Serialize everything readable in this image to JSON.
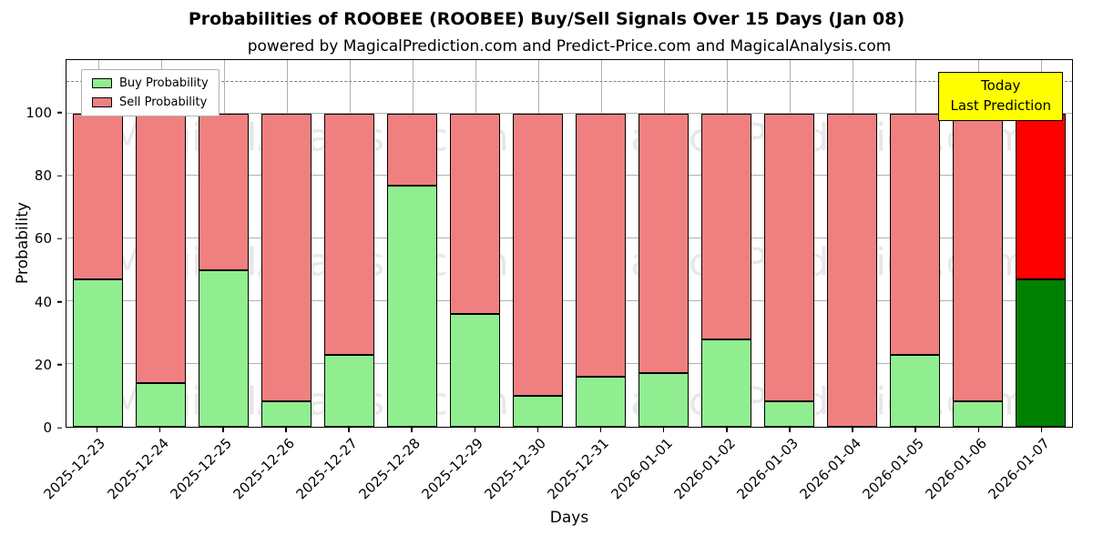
{
  "title": "Probabilities of ROOBEE (ROOBEE) Buy/Sell Signals Over 15 Days (Jan 08)",
  "subtitle": "powered by MagicalPrediction.com and Predict-Price.com and MagicalAnalysis.com",
  "legend": {
    "buy": "Buy Probability",
    "sell": "Sell Probability"
  },
  "annotation": {
    "line1": "Today",
    "line2": "Last Prediction"
  },
  "axes": {
    "xlabel": "Days",
    "ylabel": "Probability"
  },
  "colors": {
    "buy": "#90EE90",
    "sell": "#F08080",
    "buy_today": "#008000",
    "sell_today": "#FF0000",
    "bar_edge": "#000000",
    "grid": "#b0b0b0",
    "dashed_line": "#7f7f7f",
    "annotation_bg": "#FFFF00",
    "watermark": "#808080"
  },
  "watermark": {
    "texts": [
      "MagicalAnalysis.com",
      "MagicalPrediction.com"
    ],
    "rows": 3
  },
  "chart_data": {
    "type": "bar",
    "stacked": true,
    "title": "Probabilities of ROOBEE (ROOBEE) Buy/Sell Signals Over 15 Days (Jan 08)",
    "xlabel": "Days",
    "ylabel": "Probability",
    "categories": [
      "2025-12-23",
      "2025-12-24",
      "2025-12-25",
      "2025-12-26",
      "2025-12-27",
      "2025-12-28",
      "2025-12-29",
      "2025-12-30",
      "2025-12-31",
      "2026-01-01",
      "2026-01-02",
      "2026-01-03",
      "2026-01-04",
      "2026-01-05",
      "2026-01-06",
      "2026-01-07"
    ],
    "series": [
      {
        "name": "Buy Probability",
        "values": [
          47,
          14,
          50,
          8,
          23,
          77,
          36,
          10,
          16,
          17,
          28,
          8,
          0,
          23,
          8,
          47
        ]
      },
      {
        "name": "Sell Probability",
        "values": [
          53,
          86,
          50,
          92,
          77,
          23,
          64,
          90,
          84,
          83,
          72,
          92,
          100,
          77,
          92,
          53
        ]
      }
    ],
    "ylim": [
      0,
      117
    ],
    "yticks": [
      0,
      20,
      40,
      60,
      80,
      100
    ],
    "dashed_line_y": 110,
    "today_index": 15,
    "grid": true,
    "legend_position": "upper left"
  }
}
